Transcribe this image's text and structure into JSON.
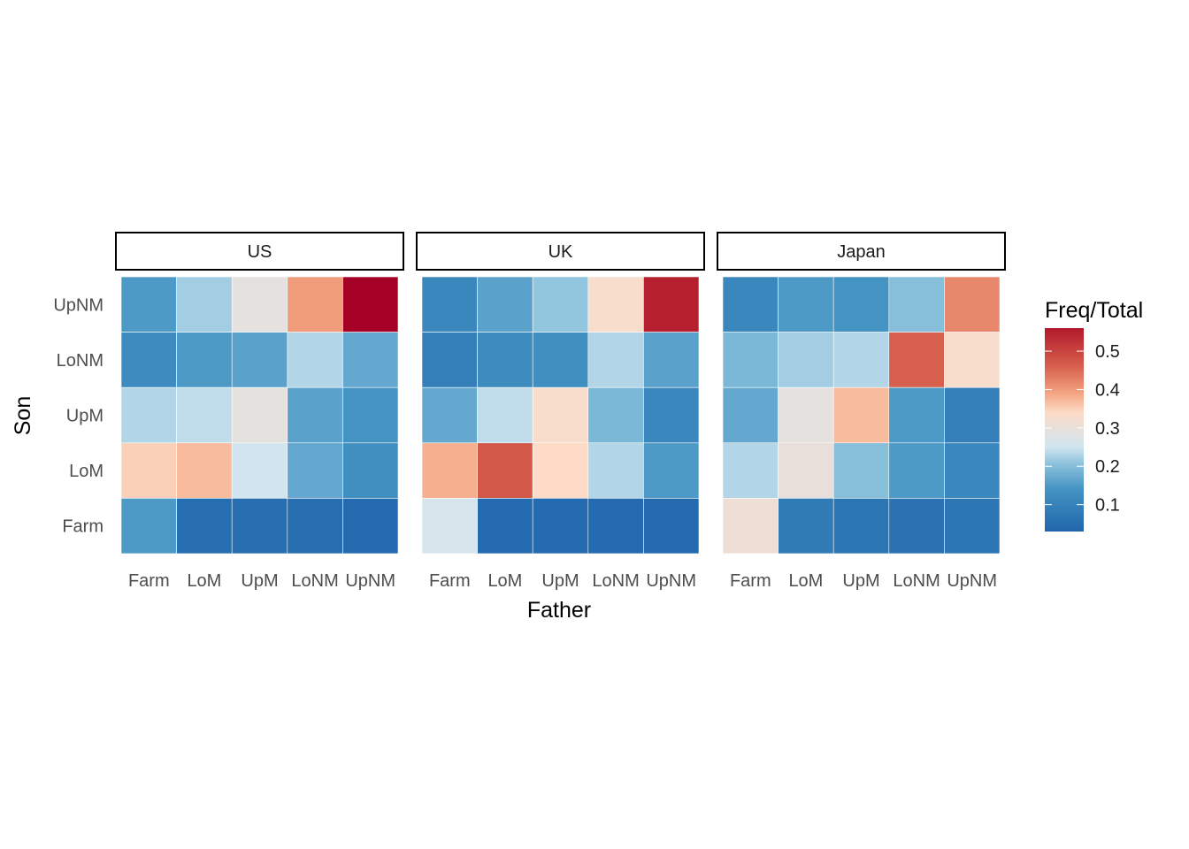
{
  "chart_data": {
    "type": "heatmap",
    "xlabel": "Father",
    "ylabel": "Son",
    "x_categories": [
      "Farm",
      "LoM",
      "UpM",
      "LoNM",
      "UpNM"
    ],
    "y_categories": [
      "Farm",
      "LoM",
      "UpM",
      "LoNM",
      "UpNM"
    ],
    "legend": {
      "title": "Freq/Total",
      "ticks": [
        0.1,
        0.2,
        0.3,
        0.4,
        0.5
      ],
      "tick_labels": [
        "0.1",
        "0.2",
        "0.3",
        "0.4",
        "0.5"
      ],
      "range": [
        0.03,
        0.56
      ],
      "placement": "right"
    },
    "color_stops": [
      {
        "v": 0.03,
        "c": "#2166ac"
      },
      {
        "v": 0.14,
        "c": "#4393c3"
      },
      {
        "v": 0.21,
        "c": "#92c5de"
      },
      {
        "v": 0.25,
        "c": "#d1e5f0"
      },
      {
        "v": 0.295,
        "c": "#e6e0dc"
      },
      {
        "v": 0.34,
        "c": "#fddbc7"
      },
      {
        "v": 0.39,
        "c": "#f4a582"
      },
      {
        "v": 0.46,
        "c": "#d6604d"
      },
      {
        "v": 0.56,
        "c": "#b2182b"
      }
    ],
    "panels": [
      {
        "name": "US",
        "rows": [
          {
            "son": "UpNM",
            "values": [
              0.15,
              0.22,
              0.29,
              0.4,
              0.58
            ]
          },
          {
            "son": "LoNM",
            "values": [
              0.12,
              0.15,
              0.16,
              0.23,
              0.17
            ]
          },
          {
            "son": "UpM",
            "values": [
              0.23,
              0.24,
              0.29,
              0.16,
              0.14
            ]
          },
          {
            "son": "LoM",
            "values": [
              0.35,
              0.37,
              0.25,
              0.17,
              0.13
            ]
          },
          {
            "son": "Farm",
            "values": [
              0.15,
              0.05,
              0.05,
              0.05,
              0.04
            ]
          }
        ]
      },
      {
        "name": "UK",
        "rows": [
          {
            "son": "UpNM",
            "values": [
              0.11,
              0.16,
              0.21,
              0.33,
              0.55
            ]
          },
          {
            "son": "LoNM",
            "values": [
              0.09,
              0.12,
              0.13,
              0.23,
              0.16
            ]
          },
          {
            "son": "UpM",
            "values": [
              0.17,
              0.24,
              0.33,
              0.19,
              0.11
            ]
          },
          {
            "son": "LoM",
            "values": [
              0.38,
              0.47,
              0.34,
              0.23,
              0.15
            ]
          },
          {
            "son": "Farm",
            "values": [
              0.26,
              0.04,
              0.04,
              0.04,
              0.04
            ]
          }
        ]
      },
      {
        "name": "Japan",
        "rows": [
          {
            "son": "UpNM",
            "values": [
              0.11,
              0.15,
              0.14,
              0.2,
              0.42
            ]
          },
          {
            "son": "LoNM",
            "values": [
              0.19,
              0.22,
              0.23,
              0.46,
              0.33
            ]
          },
          {
            "son": "UpM",
            "values": [
              0.17,
              0.29,
              0.37,
              0.15,
              0.09
            ]
          },
          {
            "son": "LoM",
            "values": [
              0.23,
              0.3,
              0.2,
              0.15,
              0.11
            ]
          },
          {
            "son": "Farm",
            "values": [
              0.31,
              0.08,
              0.07,
              0.06,
              0.07
            ]
          }
        ]
      }
    ]
  }
}
